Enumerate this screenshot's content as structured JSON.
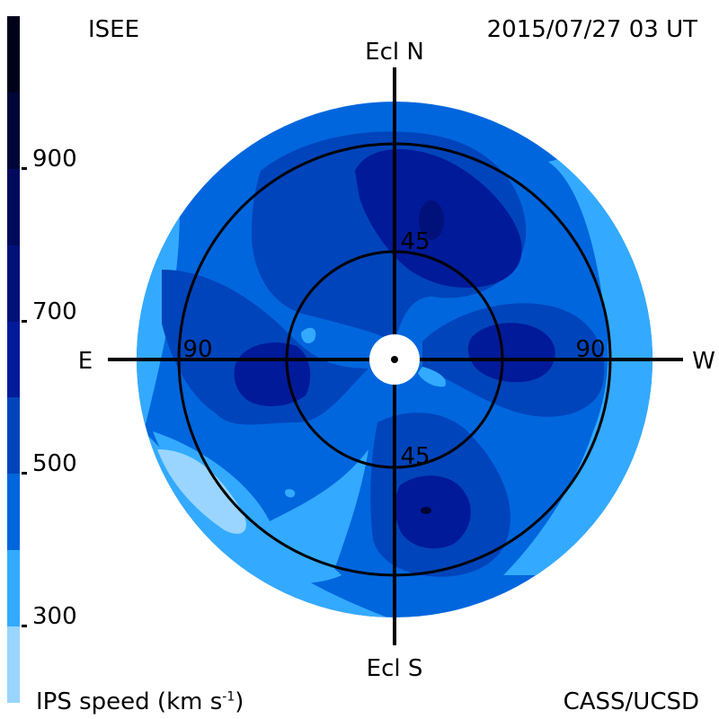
{
  "header": {
    "source": "ISEE",
    "timestamp": "2015/07/27 03 UT"
  },
  "footer": {
    "colorbar_title": "IPS speed (km s",
    "colorbar_title_exp": "-1",
    "colorbar_title_end": ")",
    "credit": "CASS/UCSD"
  },
  "chart_data": {
    "type": "heatmap",
    "projection": "polar sky map",
    "directions": {
      "north": "Ecl N",
      "south": "Ecl S",
      "east": "E",
      "west": "W"
    },
    "rings": [
      {
        "elongation": 45,
        "labels": [
          "45",
          "45"
        ]
      },
      {
        "elongation": 90,
        "labels": [
          "90",
          "90"
        ]
      }
    ],
    "colorbar": {
      "ticks": [
        900,
        700,
        500,
        300
      ],
      "tick_labels": [
        "900",
        "700",
        "500",
        "300"
      ],
      "levels": [
        {
          "from": 200,
          "to": 300,
          "color": "#99d5ff"
        },
        {
          "from": 300,
          "to": 400,
          "color": "#33aaff"
        },
        {
          "from": 400,
          "to": 500,
          "color": "#0066dd"
        },
        {
          "from": 500,
          "to": 600,
          "color": "#0044bb"
        },
        {
          "from": 600,
          "to": 700,
          "color": "#001a99"
        },
        {
          "from": 700,
          "to": 800,
          "color": "#00117a"
        },
        {
          "from": 800,
          "to": 900,
          "color": "#000a5c"
        },
        {
          "from": 900,
          "to": 1000,
          "color": "#000538"
        },
        {
          "from": 1000,
          "to": 1100,
          "color": "#00021a"
        }
      ]
    },
    "regions": [
      {
        "description": "north lobe",
        "speed_level": 600
      },
      {
        "description": "north core",
        "speed_level": 700
      },
      {
        "description": "east lobe",
        "speed_level": 600
      },
      {
        "description": "west lobe",
        "speed_level": 600
      },
      {
        "description": "south lobe",
        "speed_level": 600
      },
      {
        "description": "southwest low-speed region",
        "speed_level": 300
      },
      {
        "description": "outer background",
        "speed_level": 400
      }
    ]
  }
}
